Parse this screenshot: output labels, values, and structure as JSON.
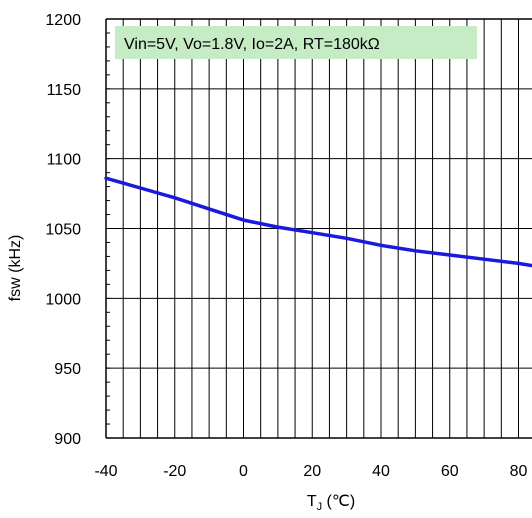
{
  "chart_data": {
    "type": "line",
    "xlabel_main": "T",
    "xlabel_sub": "J",
    "xlabel_unit": " (℃)",
    "ylabel": "fsw (kHz)",
    "annotation": "Vin=5V, Vo=1.8V, Io=2A, RT=180kΩ",
    "xlim": [
      -40,
      85
    ],
    "ylim": [
      900,
      1200
    ],
    "x_ticks": [
      -40,
      -20,
      0,
      20,
      40,
      60,
      80
    ],
    "y_ticks": [
      900,
      950,
      1000,
      1050,
      1100,
      1150,
      1200
    ],
    "grid": true,
    "colors": {
      "line": "#1a1adf",
      "annotation_bg": "#c6ecc6",
      "grid": "#000000"
    },
    "series": [
      {
        "x": [
          -40,
          -30,
          -20,
          -10,
          0,
          10,
          20,
          30,
          40,
          50,
          60,
          70,
          80,
          85
        ],
        "y": [
          1086,
          1079,
          1072,
          1064,
          1056,
          1051,
          1047,
          1043,
          1038,
          1034,
          1031,
          1028,
          1025,
          1023
        ]
      }
    ]
  }
}
